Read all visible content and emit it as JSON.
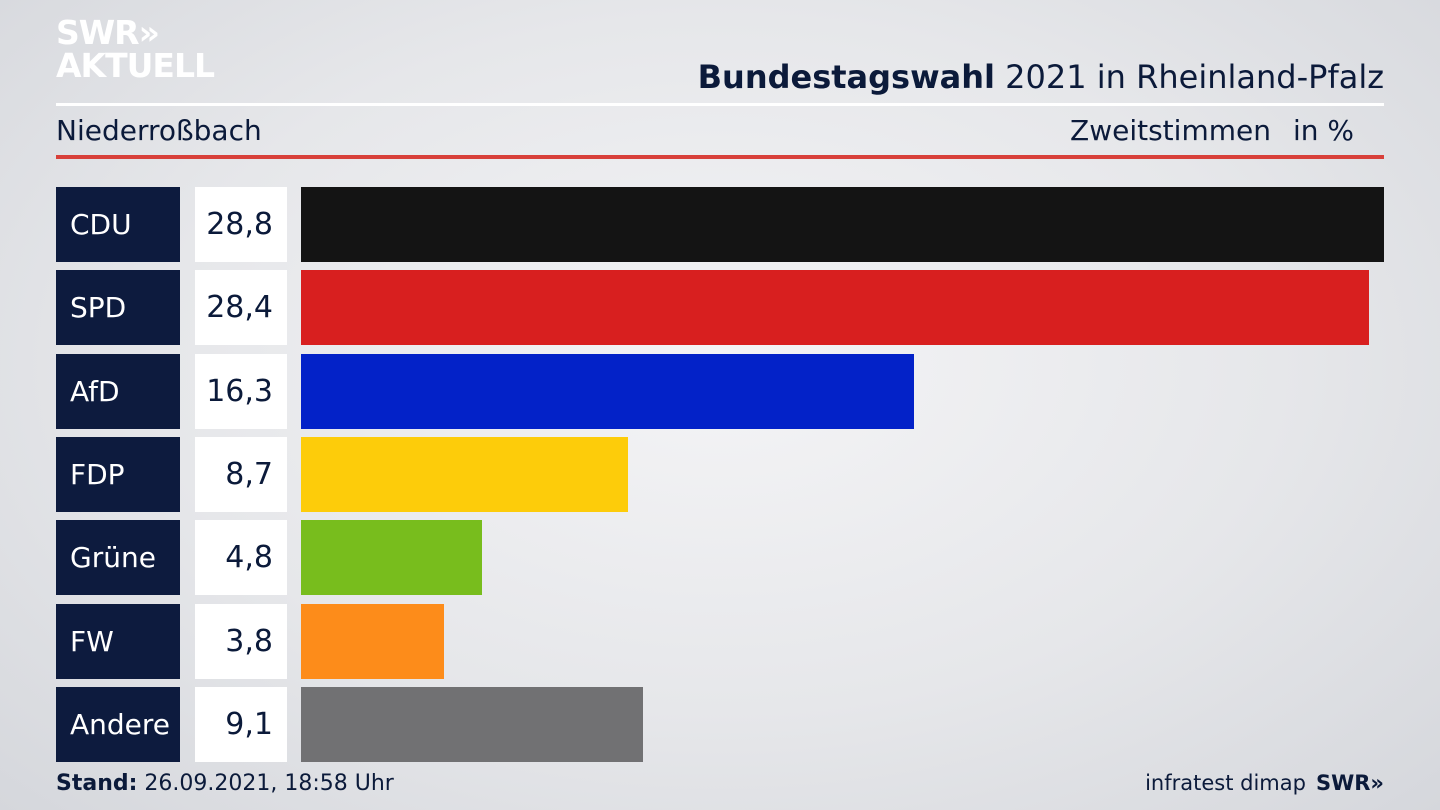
{
  "logo": {
    "line1": "SWR»",
    "line2": "AKTUELL"
  },
  "header": {
    "title_bold": "Bundestagswahl",
    "title_rest": " 2021 in Rheinland-Pfalz"
  },
  "subheader": {
    "place": "Niederroßbach",
    "measure": "Zweitstimmen",
    "unit": "in %"
  },
  "chart_data": {
    "type": "bar",
    "orientation": "horizontal",
    "categories": [
      "CDU",
      "SPD",
      "AfD",
      "FDP",
      "Grüne",
      "FW",
      "Andere"
    ],
    "values": [
      28.8,
      28.4,
      16.3,
      8.7,
      4.8,
      3.8,
      9.1
    ],
    "value_labels": [
      "28,8",
      "28,4",
      "16,3",
      "8,7",
      "4,8",
      "3,8",
      "9,1"
    ],
    "colors": [
      "#141414",
      "#d81f1f",
      "#0322c8",
      "#fdcc0a",
      "#78bd1d",
      "#fd8c1a",
      "#717173"
    ],
    "xlim": [
      0,
      28.8
    ]
  },
  "footer": {
    "stand_label": "Stand:",
    "stand_value": " 26.09.2021, 18:58 Uhr",
    "source": "infratest dimap",
    "brand": "SWR»"
  }
}
